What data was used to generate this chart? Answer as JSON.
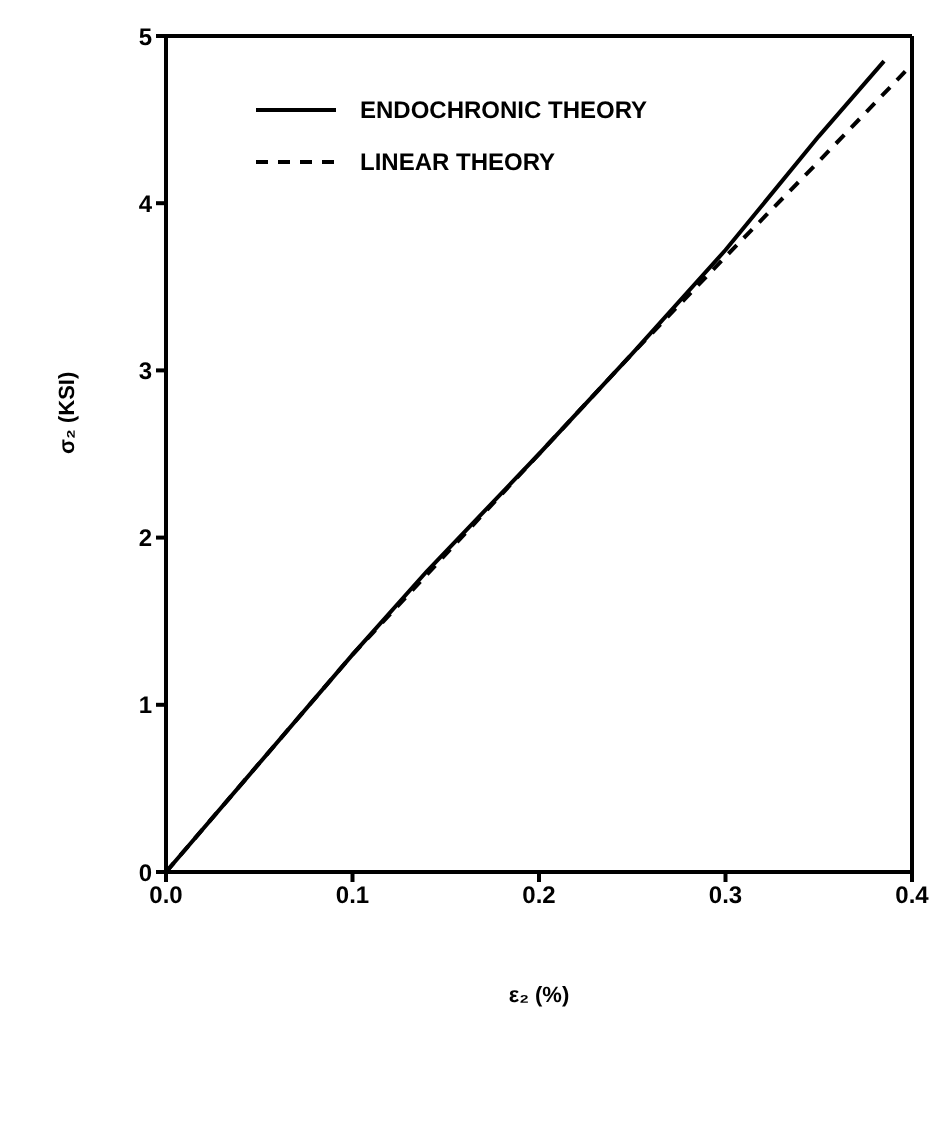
{
  "chart_data": {
    "type": "line",
    "xlabel": "ε₂ (%)",
    "ylabel": "σ₂ (KSI)",
    "xlim": [
      0,
      0.4
    ],
    "xticks": [
      {
        "value": 0,
        "label": "0.0"
      },
      0.1,
      0.2,
      0.3,
      0.4
    ],
    "ylim": [
      0,
      5
    ],
    "yticks": [
      0,
      1,
      2,
      3,
      4,
      5
    ],
    "legend": "top left",
    "marker": "none",
    "series": [
      {
        "name": "ENDOCHRONIC THEORY",
        "color": "#000000",
        "line_style": "solid",
        "x": [
          0,
          0.05,
          0.1,
          0.14,
          0.2,
          0.25,
          0.3,
          0.35,
          0.385
        ],
        "values": [
          0,
          0.65,
          1.3,
          1.8,
          2.5,
          3.1,
          3.72,
          4.4,
          4.85
        ]
      },
      {
        "name": "LINEAR THEORY",
        "color": "#000000",
        "line_style": "dashed",
        "x": [
          0,
          0.1,
          0.2,
          0.25,
          0.3,
          0.35,
          0.4
        ],
        "values": [
          0,
          1.3,
          2.5,
          3.1,
          3.68,
          4.25,
          4.83
        ]
      }
    ]
  }
}
